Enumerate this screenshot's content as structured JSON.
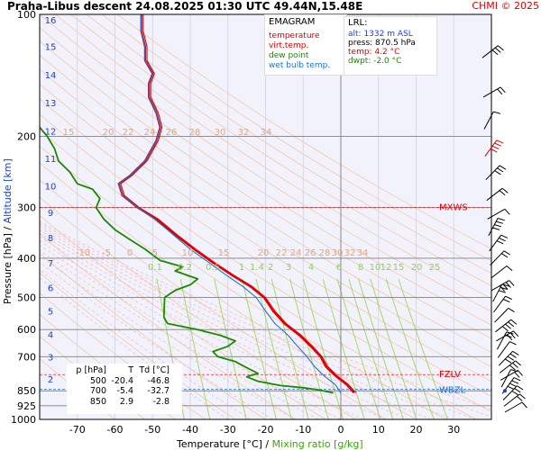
{
  "title": "Praha-Libus   descent   24.08.2025 01:30 UTC  49.44N,15.48E",
  "credit": "CHMI © 2025",
  "xlabel": "Temperature [°C]  /",
  "xlabel_mr": "Mixing ratio [g/kg]",
  "ylabel_pressure": "Pressure [hPa]  /",
  "ylabel_alt": "Altitude [km]",
  "legend": {
    "heading": "EMAGRAM",
    "items": [
      {
        "label": "temperature",
        "color": "#e00000"
      },
      {
        "label": "virt.temp.",
        "color": "#e00000"
      },
      {
        "label": "dew point",
        "color": "#1a8a00"
      },
      {
        "label": "wet bulb temp.",
        "color": "#1f6fd8"
      }
    ]
  },
  "lrl": {
    "heading": "LRL:",
    "alt": "alt: 1332 m ASL",
    "press": "press: 870.5 hPa",
    "temp": "temp: 4.2 °C",
    "dwpt": "dwpt: -2.0 °C"
  },
  "table": {
    "headers": [
      "p [hPa]",
      "T",
      "Td [°C]"
    ],
    "rows": [
      [
        "500",
        "-20.4",
        "-46.8"
      ],
      [
        "700",
        "-5.4",
        "-32.7"
      ],
      [
        "850",
        "2.9",
        "-2.8"
      ]
    ]
  },
  "chart_data": {
    "type": "line",
    "chart_kind": "emagram (skew-less log-p temperature sounding)",
    "x_axis": {
      "label": "Temperature [°C]",
      "range": [
        -80,
        40
      ],
      "ticks": [
        -70,
        -60,
        -50,
        -40,
        -30,
        -20,
        -10,
        0,
        10,
        20,
        30
      ]
    },
    "y_axis": {
      "label": "Pressure [hPa]",
      "scale": "log",
      "range": [
        1000,
        100
      ],
      "ticks": [
        100,
        200,
        300,
        400,
        500,
        600,
        700,
        850,
        925,
        1000
      ]
    },
    "altitude_ticks_km": [
      2,
      3,
      4,
      5,
      6,
      7,
      8,
      9,
      10,
      11,
      12,
      13,
      14,
      15,
      16
    ],
    "dry_adiabat_labels": [
      15,
      20,
      22,
      24,
      26,
      28,
      30,
      32,
      34
    ],
    "moist_adiabat_labels": [
      -10,
      -5,
      0,
      5,
      10,
      15,
      20,
      22,
      24,
      26,
      28,
      30,
      32,
      34
    ],
    "mixing_ratio_labels": [
      "0.1",
      "0.2",
      "0.5",
      "1",
      "1.4",
      "2",
      "3",
      "4",
      "6",
      "8",
      "10",
      "12",
      "15",
      "20",
      "25"
    ],
    "levels": [
      {
        "label": "MXWS",
        "pressure": 300,
        "color": "#e00000"
      },
      {
        "label": "FZLV",
        "pressure": 775,
        "color": "#e00000"
      },
      {
        "label": "WBZL",
        "pressure": 843,
        "color": "#1f6fd8"
      }
    ],
    "series": [
      {
        "name": "temperature",
        "color": "#e00000",
        "points": [
          [
            3.5,
            860
          ],
          [
            1.5,
            820
          ],
          [
            -1.5,
            780
          ],
          [
            -4,
            740
          ],
          [
            -5.4,
            700
          ],
          [
            -8,
            660
          ],
          [
            -11,
            620
          ],
          [
            -15,
            580
          ],
          [
            -18,
            540
          ],
          [
            -20.4,
            500
          ],
          [
            -24,
            470
          ],
          [
            -29,
            440
          ],
          [
            -34,
            410
          ],
          [
            -39,
            380
          ],
          [
            -44,
            350
          ],
          [
            -49,
            320
          ],
          [
            -54,
            300
          ],
          [
            -58,
            280
          ],
          [
            -59,
            262
          ],
          [
            -56,
            250
          ],
          [
            -52,
            230
          ],
          [
            -49,
            205
          ],
          [
            -48,
            190
          ],
          [
            -49,
            175
          ],
          [
            -51,
            160
          ],
          [
            -51,
            148
          ],
          [
            -50,
            140
          ],
          [
            -52,
            130
          ],
          [
            -52,
            120
          ],
          [
            -53,
            110
          ],
          [
            -53,
            100
          ]
        ]
      },
      {
        "name": "virt.temp.",
        "color": "#e00000",
        "points": [
          [
            4,
            860
          ],
          [
            2,
            820
          ],
          [
            -1,
            780
          ],
          [
            -3.5,
            740
          ],
          [
            -5,
            700
          ],
          [
            -7.5,
            660
          ],
          [
            -10.5,
            620
          ],
          [
            -14.5,
            580
          ],
          [
            -17.5,
            540
          ],
          [
            -20,
            500
          ],
          [
            -23.5,
            470
          ],
          [
            -28.5,
            440
          ],
          [
            -33.5,
            410
          ],
          [
            -38.5,
            380
          ],
          [
            -43.5,
            350
          ],
          [
            -48.5,
            320
          ],
          [
            -53.5,
            300
          ],
          [
            -57.5,
            280
          ],
          [
            -58.5,
            262
          ],
          [
            -55.5,
            250
          ],
          [
            -51.5,
            230
          ],
          [
            -48.5,
            205
          ],
          [
            -47.5,
            190
          ],
          [
            -48.5,
            175
          ],
          [
            -50.5,
            160
          ],
          [
            -50.5,
            148
          ],
          [
            -49.5,
            140
          ],
          [
            -51.5,
            130
          ],
          [
            -51.5,
            120
          ],
          [
            -52.5,
            110
          ],
          [
            -52.5,
            100
          ]
        ]
      },
      {
        "name": "dew point",
        "color": "#1a8a00",
        "points": [
          [
            -2,
            860
          ],
          [
            -6,
            845
          ],
          [
            -10,
            835
          ],
          [
            -16,
            825
          ],
          [
            -22,
            805
          ],
          [
            -25,
            785
          ],
          [
            -22,
            770
          ],
          [
            -25,
            745
          ],
          [
            -28,
            720
          ],
          [
            -32.7,
            700
          ],
          [
            -34,
            680
          ],
          [
            -30,
            660
          ],
          [
            -28,
            640
          ],
          [
            -32,
            620
          ],
          [
            -38,
            600
          ],
          [
            -46,
            580
          ],
          [
            -47,
            560
          ],
          [
            -46.8,
            500
          ],
          [
            -44,
            480
          ],
          [
            -40,
            465
          ],
          [
            -38,
            450
          ],
          [
            -44,
            430
          ],
          [
            -42,
            420
          ],
          [
            -48,
            405
          ],
          [
            -52,
            380
          ],
          [
            -56,
            360
          ],
          [
            -60,
            340
          ],
          [
            -63,
            320
          ],
          [
            -65,
            300
          ],
          [
            -64,
            285
          ],
          [
            -66,
            270
          ],
          [
            -70,
            262
          ],
          [
            -72,
            245
          ],
          [
            -75,
            230
          ],
          [
            -76,
            215
          ],
          [
            -78,
            200
          ],
          [
            -80,
            190
          ]
        ]
      },
      {
        "name": "wet bulb temp.",
        "color": "#1f6fd8",
        "points": [
          [
            0,
            860
          ],
          [
            -1.5,
            820
          ],
          [
            -4.5,
            780
          ],
          [
            -7,
            740
          ],
          [
            -9,
            700
          ],
          [
            -11.5,
            660
          ],
          [
            -14,
            620
          ],
          [
            -17.5,
            580
          ],
          [
            -20,
            540
          ],
          [
            -22.5,
            500
          ],
          [
            -26,
            470
          ],
          [
            -30.5,
            440
          ],
          [
            -35,
            410
          ],
          [
            -40,
            380
          ],
          [
            -44.5,
            350
          ],
          [
            -49.5,
            320
          ],
          [
            -54,
            300
          ],
          [
            -58,
            280
          ],
          [
            -59,
            262
          ],
          [
            -56,
            250
          ],
          [
            -52,
            230
          ],
          [
            -49,
            205
          ],
          [
            -48,
            190
          ],
          [
            -49,
            175
          ],
          [
            -51,
            160
          ],
          [
            -51,
            148
          ],
          [
            -50,
            140
          ],
          [
            -52,
            130
          ],
          [
            -52,
            120
          ],
          [
            -53,
            110
          ],
          [
            -53,
            100
          ]
        ]
      }
    ],
    "wind_barbs": "plotted along right column from 1000 to 100 hPa",
    "grid": true
  }
}
